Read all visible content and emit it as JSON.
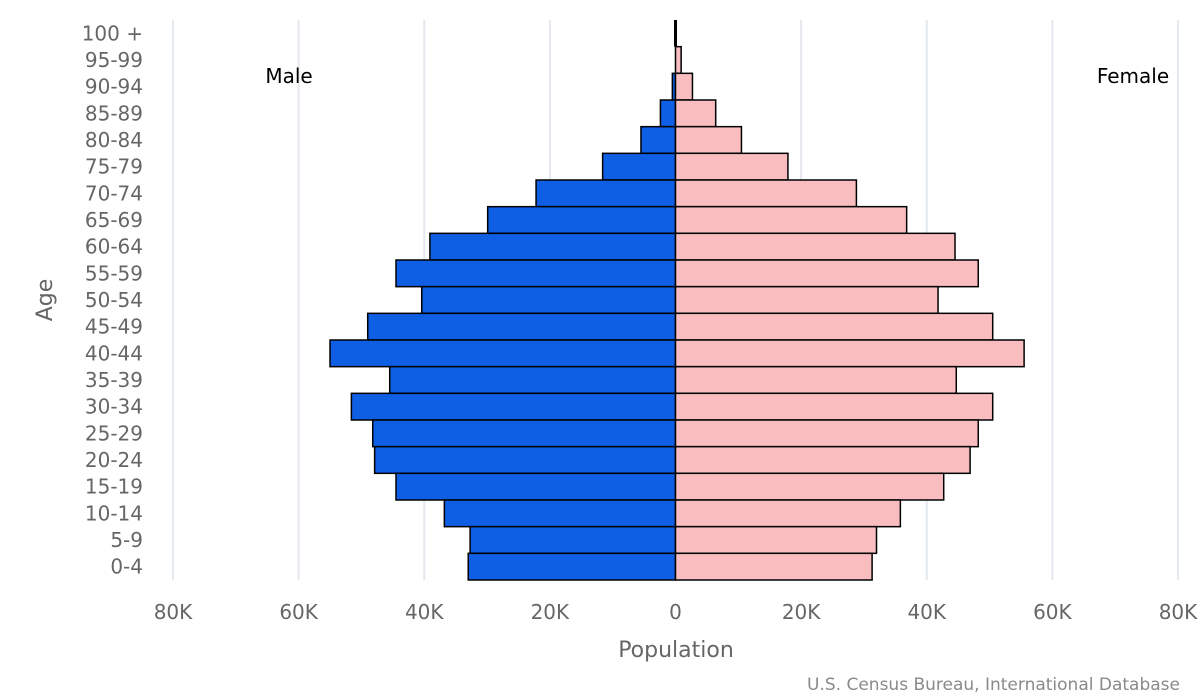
{
  "chart_data": {
    "type": "bar",
    "orientation": "horizontal",
    "xlabel": "Population",
    "ylabel": "Age",
    "xlim": [
      -80000,
      80000
    ],
    "xticks": [
      -80000,
      -60000,
      -40000,
      -20000,
      0,
      20000,
      40000,
      60000,
      80000
    ],
    "xtick_labels": [
      "80K",
      "60K",
      "40K",
      "20K",
      "0",
      "20K",
      "40K",
      "60K",
      "80K"
    ],
    "grid": "vertical",
    "categories": [
      "100 +",
      "95-99",
      "90-94",
      "85-89",
      "80-84",
      "75-79",
      "70-74",
      "65-69",
      "60-64",
      "55-59",
      "50-54",
      "45-49",
      "40-44",
      "35-39",
      "30-34",
      "25-29",
      "20-24",
      "15-19",
      "10-14",
      "5-9",
      "0-4"
    ],
    "series": [
      {
        "name": "Male",
        "color": "#0e5fe3",
        "values": [
          0,
          0,
          500,
          2400,
          5500,
          11600,
          22200,
          29900,
          39100,
          44500,
          40400,
          49000,
          55000,
          45500,
          51600,
          48200,
          47900,
          44500,
          36800,
          32700,
          33000
        ]
      },
      {
        "name": "Female",
        "color": "#f9bdbf",
        "values": [
          0,
          900,
          2700,
          6400,
          10500,
          17900,
          28800,
          36800,
          44500,
          48200,
          41800,
          50500,
          55500,
          44700,
          50500,
          48200,
          46900,
          42700,
          35800,
          32000,
          31300
        ]
      }
    ],
    "source": "U.S. Census Bureau, International Database"
  }
}
